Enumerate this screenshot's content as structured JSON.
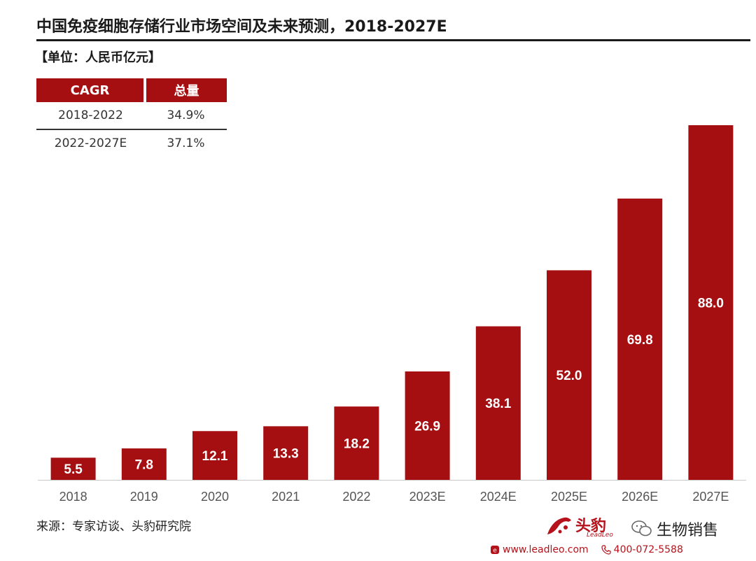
{
  "title": "中国免疫细胞存储行业市场空间及未来预测，2018-2027E",
  "unit_label": "【单位：人民币亿元】",
  "cagr_table": {
    "headers": [
      "CAGR",
      "总量"
    ],
    "rows": [
      {
        "period": "2018-2022",
        "value": "34.9%"
      },
      {
        "period": "2022-2027E",
        "value": "37.1%"
      }
    ]
  },
  "chart_data": {
    "type": "bar",
    "categories": [
      "2018",
      "2019",
      "2020",
      "2021",
      "2022",
      "2023E",
      "2024E",
      "2025E",
      "2026E",
      "2027E"
    ],
    "values": [
      5.5,
      7.8,
      12.1,
      13.3,
      18.2,
      26.9,
      38.1,
      52.0,
      69.8,
      88.0
    ],
    "value_labels": [
      "5.5",
      "7.8",
      "12.1",
      "13.3",
      "18.2",
      "26.9",
      "38.1",
      "52.0",
      "69.8",
      "88.0"
    ],
    "title": "中国免疫细胞存储行业市场空间及未来预测，2018-2027E",
    "xlabel": "",
    "ylabel": "",
    "ylim": [
      0,
      88.0
    ],
    "grid": false,
    "bar_color": "#a50f12",
    "label_color": "#ffffff"
  },
  "source": "来源：专家访谈、头豹研究院",
  "brand": {
    "name": "头豹",
    "sub": "LeadLeo",
    "wechat": "生物销售",
    "website": "www.leadleo.com",
    "phone": "400-072-5588",
    "brand_color": "#b5121b"
  }
}
